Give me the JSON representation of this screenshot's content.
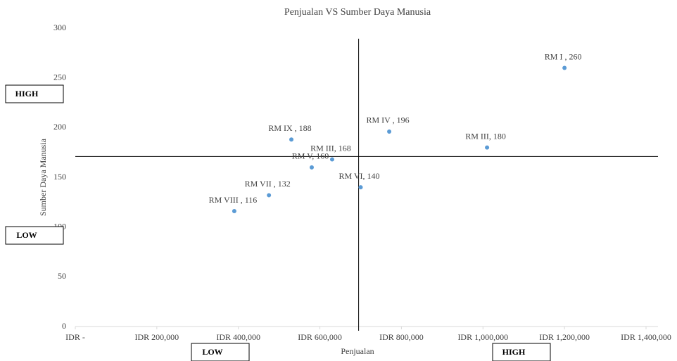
{
  "chart_data": {
    "type": "scatter",
    "title": "Penjualan VS Sumber Daya Manusia",
    "x_label": "Penjualan",
    "y_label": "Sumber Daya Manusia",
    "color": "#5b9bd5",
    "x": [
      1200000,
      1010000,
      770000,
      530000,
      630000,
      580000,
      700000,
      475000,
      390000
    ],
    "values": [
      260,
      180,
      196,
      188,
      168,
      160,
      140,
      132,
      116
    ],
    "value_labels": [
      "RM I , 260",
      "RM III, 180",
      "RM IV , 196",
      "RM IX , 188",
      "RM III, 168",
      "RM V, 160",
      "RM VI, 140",
      "RM VII , 132",
      "RM VIII , 116"
    ],
    "xlim": [
      0,
      1400000
    ],
    "xticks": [
      {
        "value": 0,
        "label": "IDR -"
      },
      {
        "value": 200000,
        "label": "IDR 200,000"
      },
      {
        "value": 400000,
        "label": "IDR 400,000"
      },
      {
        "value": 600000,
        "label": "IDR 600,000"
      },
      {
        "value": 800000,
        "label": "IDR 800,000"
      },
      {
        "value": 1000000,
        "label": "IDR 1,000,000"
      },
      {
        "value": 1200000,
        "label": "IDR 1,200,000"
      },
      {
        "value": 1400000,
        "label": "IDR 1,400,000"
      }
    ],
    "ylim": [
      0,
      300
    ],
    "yticks": [
      0,
      50,
      100,
      150,
      200,
      250,
      300
    ],
    "reference_lines": {
      "x": 695000,
      "y": 171
    },
    "y_quadrant_labels": [
      "HIGH",
      "LOW"
    ],
    "x_quadrant_labels": [
      "LOW",
      "HIGH"
    ]
  }
}
